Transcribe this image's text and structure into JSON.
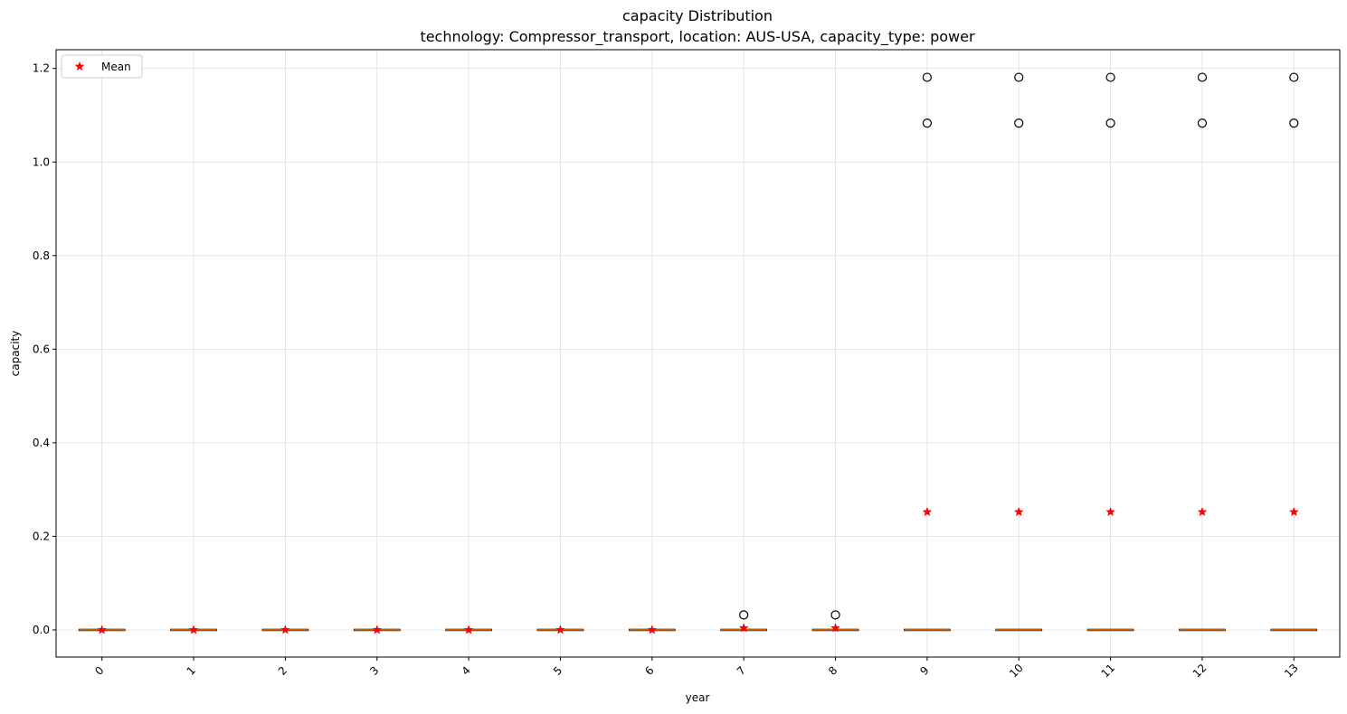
{
  "chart_data": {
    "type": "box",
    "title": "capacity Distribution",
    "subtitle": "technology: Compressor_transport, location: AUS-USA, capacity_type: power",
    "xlabel": "year",
    "ylabel": "capacity",
    "categories": [
      "0",
      "1",
      "2",
      "3",
      "4",
      "5",
      "6",
      "7",
      "8",
      "9",
      "10",
      "11",
      "12",
      "13"
    ],
    "ylim": [
      -0.058,
      1.24
    ],
    "yticks": [
      0.0,
      0.2,
      0.4,
      0.6,
      0.8,
      1.0,
      1.2
    ],
    "ytick_labels": [
      "0.0",
      "0.2",
      "0.4",
      "0.6",
      "0.8",
      "1.0",
      "1.2"
    ],
    "grid": true,
    "legend": {
      "position": "top-left",
      "label": "Mean"
    },
    "colors": {
      "mean": "#ff0000",
      "median": "#ff7f0e",
      "box": "#000000",
      "grid": "#e0e0e0"
    },
    "boxes": [
      {
        "category": "0",
        "q1": 0,
        "median": 0,
        "q3": 0,
        "whisker_low": 0,
        "whisker_high": 0,
        "mean": 0,
        "outliers": []
      },
      {
        "category": "1",
        "q1": 0,
        "median": 0,
        "q3": 0,
        "whisker_low": 0,
        "whisker_high": 0,
        "mean": 0,
        "outliers": []
      },
      {
        "category": "2",
        "q1": 0,
        "median": 0,
        "q3": 0,
        "whisker_low": 0,
        "whisker_high": 0,
        "mean": 0,
        "outliers": []
      },
      {
        "category": "3",
        "q1": 0,
        "median": 0,
        "q3": 0,
        "whisker_low": 0,
        "whisker_high": 0,
        "mean": 0,
        "outliers": []
      },
      {
        "category": "4",
        "q1": 0,
        "median": 0,
        "q3": 0,
        "whisker_low": 0,
        "whisker_high": 0,
        "mean": 0,
        "outliers": []
      },
      {
        "category": "5",
        "q1": 0,
        "median": 0,
        "q3": 0,
        "whisker_low": 0,
        "whisker_high": 0,
        "mean": 0,
        "outliers": []
      },
      {
        "category": "6",
        "q1": 0,
        "median": 0,
        "q3": 0,
        "whisker_low": 0,
        "whisker_high": 0,
        "mean": 0,
        "outliers": []
      },
      {
        "category": "7",
        "q1": 0,
        "median": 0,
        "q3": 0,
        "whisker_low": 0,
        "whisker_high": 0,
        "mean": 0.004,
        "outliers": [
          0.032
        ]
      },
      {
        "category": "8",
        "q1": 0,
        "median": 0,
        "q3": 0,
        "whisker_low": 0,
        "whisker_high": 0,
        "mean": 0.004,
        "outliers": [
          0.032
        ]
      },
      {
        "category": "9",
        "q1": 0,
        "median": 0,
        "q3": 0,
        "whisker_low": 0,
        "whisker_high": 0,
        "mean": 0.252,
        "outliers": [
          1.083,
          1.181
        ]
      },
      {
        "category": "10",
        "q1": 0,
        "median": 0,
        "q3": 0,
        "whisker_low": 0,
        "whisker_high": 0,
        "mean": 0.252,
        "outliers": [
          1.083,
          1.181
        ]
      },
      {
        "category": "11",
        "q1": 0,
        "median": 0,
        "q3": 0,
        "whisker_low": 0,
        "whisker_high": 0,
        "mean": 0.252,
        "outliers": [
          1.083,
          1.181
        ]
      },
      {
        "category": "12",
        "q1": 0,
        "median": 0,
        "q3": 0,
        "whisker_low": 0,
        "whisker_high": 0,
        "mean": 0.252,
        "outliers": [
          1.083,
          1.181
        ]
      },
      {
        "category": "13",
        "q1": 0,
        "median": 0,
        "q3": 0,
        "whisker_low": 0,
        "whisker_high": 0,
        "mean": 0.252,
        "outliers": [
          1.083,
          1.181
        ]
      }
    ]
  }
}
